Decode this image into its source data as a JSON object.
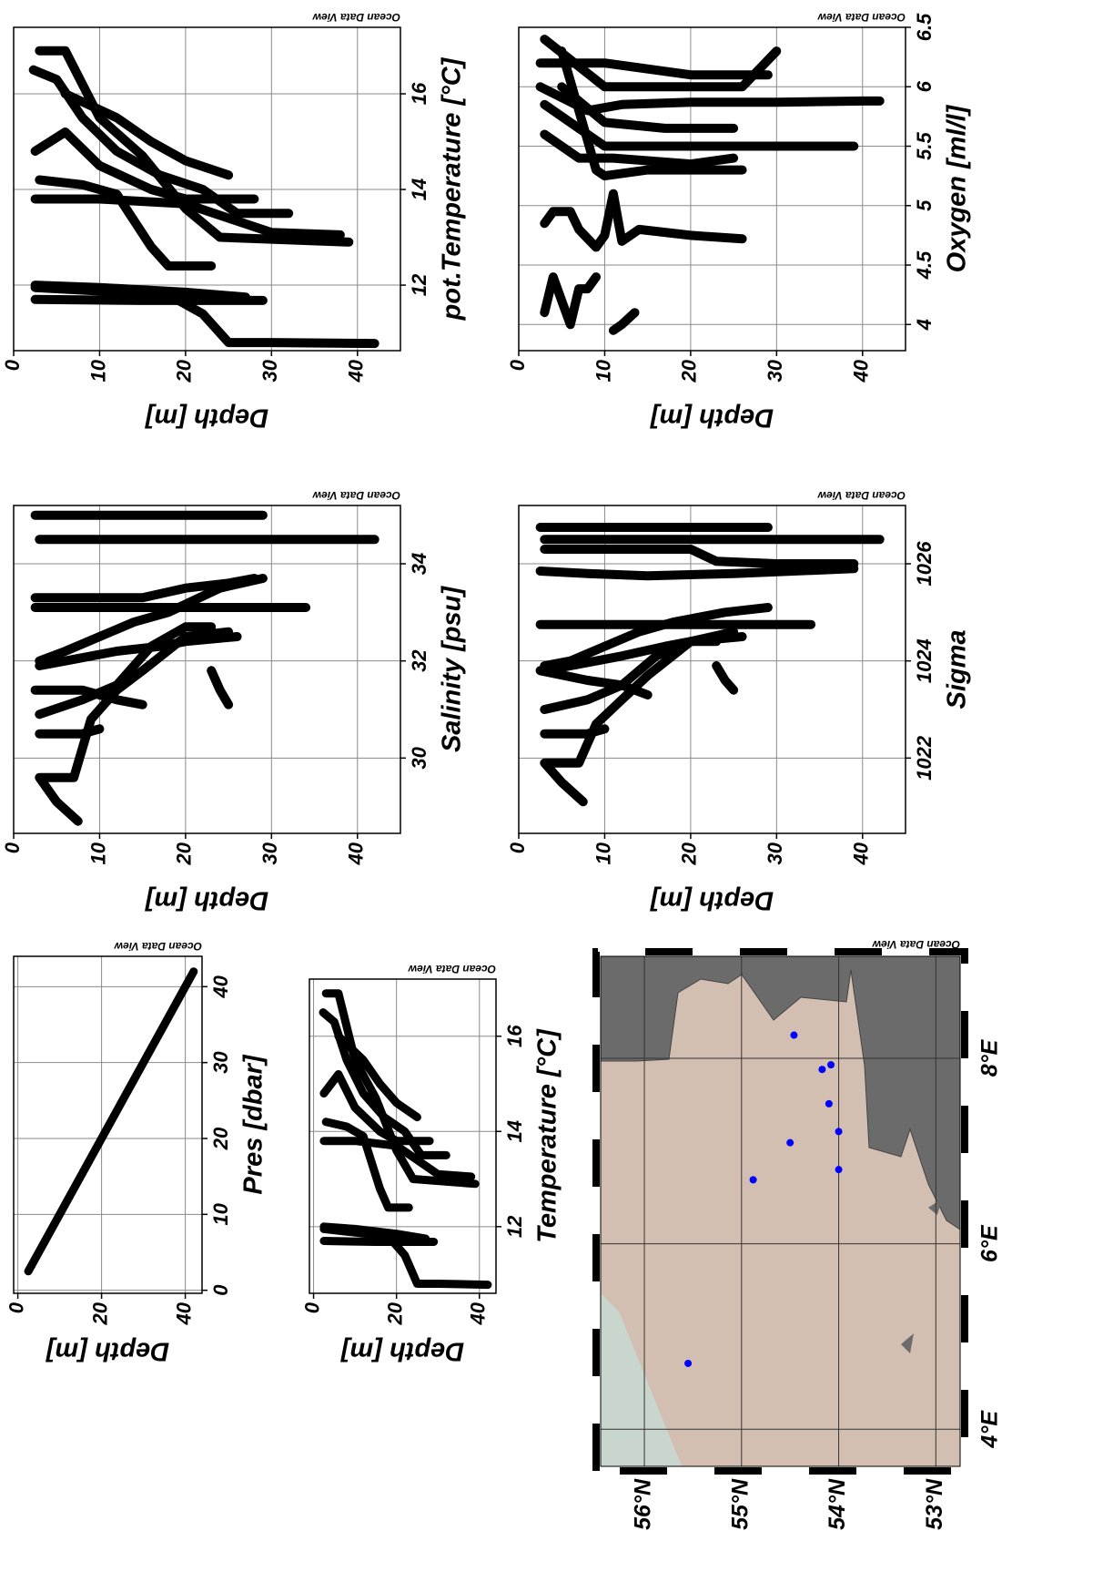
{
  "chart_data": [
    {
      "type": "scatter",
      "x_label": "pot.Temperature [°C]",
      "y_label": "Depth [m]",
      "watermark": "Ocean Data View",
      "xlim": [
        10.63,
        17.39
      ],
      "xticks": [
        12,
        14,
        16
      ],
      "ylim": [
        0,
        45
      ],
      "yticks": [
        0,
        10,
        20,
        30,
        40
      ],
      "y_inverted": true,
      "grid": true,
      "color": "#000000",
      "series": [
        {
          "x": [
            12.0,
            11.95,
            11.85,
            11.75
          ],
          "y": [
            2.5,
            10,
            20,
            27
          ]
        },
        {
          "x": [
            11.7,
            11.68,
            11.68
          ],
          "y": [
            2.5,
            15,
            29
          ]
        },
        {
          "x": [
            11.95,
            11.8,
            11.4,
            11.0,
            10.8,
            10.8,
            10.78
          ],
          "y": [
            2.5,
            18,
            22,
            24,
            25,
            30,
            42
          ]
        },
        {
          "x": [
            16.5,
            16.3,
            15.5,
            14.8,
            14.3,
            14.0,
            13.5,
            13.5
          ],
          "y": [
            2.3,
            5,
            8,
            12,
            17,
            22,
            26,
            32
          ]
        },
        {
          "x": [
            16.9,
            16.9,
            15.5,
            14.7,
            13.6,
            13.0,
            12.9
          ],
          "y": [
            3,
            6,
            10,
            15,
            20,
            24,
            39
          ]
        },
        {
          "x": [
            14.8,
            15.2,
            14.5,
            14.0,
            13.8,
            13.8
          ],
          "y": [
            2.5,
            6,
            10,
            16,
            20,
            28
          ]
        },
        {
          "x": [
            14.2,
            14.1,
            13.9,
            12.8,
            12.4,
            12.4
          ],
          "y": [
            3,
            8,
            12,
            16,
            18,
            23
          ]
        },
        {
          "x": [
            13.8,
            13.8,
            13.7,
            13.1,
            13.05
          ],
          "y": [
            2.5,
            10,
            20,
            30,
            38
          ]
        },
        {
          "x": [
            16.0,
            15.5,
            15.0,
            14.6,
            14.3
          ],
          "y": [
            6,
            12,
            16,
            20,
            25
          ]
        }
      ]
    },
    {
      "type": "scatter",
      "x_label": "Oxygen [ml/l]",
      "y_label": "Depth [m]",
      "watermark": "Ocean Data View",
      "xlim": [
        3.78,
        6.5
      ],
      "xticks": [
        4,
        4.5,
        5,
        5.5,
        6,
        6.5
      ],
      "ylim": [
        0,
        45
      ],
      "yticks": [
        0,
        10,
        20,
        30,
        40
      ],
      "y_inverted": true,
      "grid": true,
      "color": "#000000",
      "series": [
        {
          "x": [
            4.1,
            4.4,
            4.2,
            4.0,
            4.3,
            4.3,
            4.4
          ],
          "y": [
            3,
            4,
            5,
            6,
            7,
            8,
            9
          ]
        },
        {
          "x": [
            3.95,
            4.0,
            4.1
          ],
          "y": [
            11,
            12,
            13.5
          ]
        },
        {
          "x": [
            4.85,
            4.95,
            4.95,
            4.8,
            4.65,
            4.75,
            5.1,
            4.7,
            4.8,
            4.75,
            4.72
          ],
          "y": [
            3,
            4,
            6,
            7,
            9,
            10,
            11,
            12,
            14,
            20,
            26
          ]
        },
        {
          "x": [
            6.0,
            5.8,
            5.85,
            5.87,
            5.87,
            5.88,
            5.88
          ],
          "y": [
            2.5,
            8,
            12,
            20,
            30,
            40,
            42
          ]
        },
        {
          "x": [
            5.85,
            5.5,
            5.5,
            5.5,
            5.5
          ],
          "y": [
            3,
            10,
            20,
            30,
            39
          ]
        },
        {
          "x": [
            6.2,
            6.2,
            6.1,
            6.1
          ],
          "y": [
            2.5,
            10,
            20,
            29
          ]
        },
        {
          "x": [
            5.6,
            5.4,
            5.4,
            5.35,
            5.4
          ],
          "y": [
            3,
            7,
            11,
            20,
            25
          ]
        },
        {
          "x": [
            6.3,
            5.3,
            5.25,
            5.3,
            5.3
          ],
          "y": [
            5,
            9,
            10,
            15,
            26
          ]
        },
        {
          "x": [
            6.4,
            6.0,
            6.0,
            6.0,
            6.3
          ],
          "y": [
            3,
            10,
            20,
            26,
            30
          ]
        },
        {
          "x": [
            6.0,
            5.7,
            5.65,
            5.65
          ],
          "y": [
            5,
            10,
            17,
            25
          ]
        }
      ]
    },
    {
      "type": "scatter",
      "x_label": "Salinity [psu]",
      "y_label": "Depth [m]",
      "watermark": "Ocean Data View",
      "xlim": [
        28.45,
        35.2
      ],
      "xticks": [
        30,
        32,
        34
      ],
      "ylim": [
        0,
        45
      ],
      "yticks": [
        0,
        10,
        20,
        30,
        40
      ],
      "y_inverted": true,
      "grid": true,
      "color": "#000000",
      "series": [
        {
          "x": [
            35.0,
            35.0
          ],
          "y": [
            2.5,
            29
          ]
        },
        {
          "x": [
            34.5,
            34.5
          ],
          "y": [
            3,
            42
          ]
        },
        {
          "x": [
            28.7,
            29.1,
            29.6,
            29.6,
            29.6,
            30.8,
            31.4,
            31.8,
            32.5,
            32.6
          ],
          "y": [
            7.5,
            5,
            3,
            3,
            7,
            9,
            12,
            15,
            20,
            25
          ]
        },
        {
          "x": [
            33.3,
            33.3,
            33.3,
            33.5,
            33.6,
            33.7
          ],
          "y": [
            2.5,
            10,
            15,
            20,
            25,
            28
          ]
        },
        {
          "x": [
            32.0,
            32.2,
            32.5,
            32.8,
            33.0,
            33.5,
            33.7
          ],
          "y": [
            3,
            6,
            10,
            14,
            18,
            24,
            29
          ]
        },
        {
          "x": [
            33.1,
            33.1,
            33.1,
            33.1
          ],
          "y": [
            2.5,
            10,
            20,
            34
          ]
        },
        {
          "x": [
            31.9,
            32.0,
            32.2,
            32.3,
            32.4,
            32.5
          ],
          "y": [
            3,
            6,
            12,
            17,
            20,
            26
          ]
        },
        {
          "x": [
            30.9,
            31.2,
            31.5,
            32.3,
            32.7,
            32.7
          ],
          "y": [
            3,
            8,
            12,
            16,
            20,
            23
          ]
        },
        {
          "x": [
            31.4,
            31.4,
            31.2,
            31.1
          ],
          "y": [
            2.5,
            8,
            12,
            15
          ]
        },
        {
          "x": [
            30.5,
            30.5,
            30.6
          ],
          "y": [
            3,
            8,
            10
          ]
        },
        {
          "x": [
            31.8,
            31.4,
            31.1
          ],
          "y": [
            23,
            24,
            25
          ]
        }
      ]
    },
    {
      "type": "scatter",
      "x_label": "Sigma",
      "y_label": "Depth [m]",
      "watermark": "Ocean Data View",
      "xlim": [
        1020.45,
        1027.2
      ],
      "xticks": [
        1022,
        1024,
        1026
      ],
      "ylim": [
        0,
        45
      ],
      "yticks": [
        0,
        10,
        20,
        30,
        40
      ],
      "y_inverted": true,
      "grid": true,
      "color": "#000000",
      "series": [
        {
          "x": [
            1026.75,
            1026.75
          ],
          "y": [
            2.5,
            29
          ]
        },
        {
          "x": [
            1026.5,
            1026.5
          ],
          "y": [
            3,
            42
          ]
        },
        {
          "x": [
            1026.3,
            1026.3,
            1026.05,
            1026.0,
            1026.0
          ],
          "y": [
            3,
            20,
            23,
            30,
            39
          ]
        },
        {
          "x": [
            1025.85,
            1025.8,
            1025.75,
            1025.8,
            1025.9
          ],
          "y": [
            2.5,
            8,
            15,
            25,
            39
          ]
        },
        {
          "x": [
            1021.1,
            1021.5,
            1021.9,
            1021.9,
            1021.9,
            1022.7,
            1023.2,
            1023.7,
            1024.4,
            1024.6
          ],
          "y": [
            7.5,
            5,
            3,
            3,
            7,
            9,
            12,
            15,
            20,
            25
          ]
        },
        {
          "x": [
            1024.75,
            1024.75,
            1024.75,
            1024.75
          ],
          "y": [
            2.5,
            10,
            20,
            34
          ]
        },
        {
          "x": [
            1023.9,
            1024.0,
            1024.3,
            1024.6,
            1024.8,
            1025.0,
            1025.1
          ],
          "y": [
            3,
            6,
            10,
            14,
            18,
            24,
            29
          ]
        },
        {
          "x": [
            1023.8,
            1023.9,
            1024.1,
            1024.3,
            1024.4,
            1024.5
          ],
          "y": [
            3,
            6,
            12,
            17,
            20,
            26
          ]
        },
        {
          "x": [
            1023.0,
            1023.2,
            1023.5,
            1024.1,
            1024.4,
            1024.4
          ],
          "y": [
            3,
            8,
            12,
            16,
            20,
            23
          ]
        },
        {
          "x": [
            1023.8,
            1023.6,
            1023.5,
            1023.3
          ],
          "y": [
            2.5,
            8,
            12,
            15
          ]
        },
        {
          "x": [
            1022.5,
            1022.5,
            1022.6
          ],
          "y": [
            3,
            8,
            10
          ]
        },
        {
          "x": [
            1023.9,
            1023.6,
            1023.4
          ],
          "y": [
            23,
            24,
            25
          ]
        }
      ]
    },
    {
      "type": "scatter",
      "x_label": "Pres [dbar]",
      "y_label": "Depth [m]",
      "watermark": "Ocean Data View",
      "xlim": [
        -0.4,
        44
      ],
      "xticks": [
        0,
        10,
        20,
        30,
        40
      ],
      "ylim": [
        -1,
        44
      ],
      "yticks": [
        0,
        20,
        40
      ],
      "y_inverted": true,
      "grid": true,
      "color": "#000000",
      "series": [
        {
          "x": [
            2.5,
            42
          ],
          "y": [
            2.5,
            42
          ]
        }
      ]
    },
    {
      "type": "scatter",
      "x_label": "Temperature [°C]",
      "y_label": "Depth [m]",
      "watermark": "Ocean Data View",
      "xlim": [
        10.6,
        17.2
      ],
      "xticks": [
        12,
        14,
        16
      ],
      "ylim": [
        -1,
        44
      ],
      "yticks": [
        0,
        20,
        40
      ],
      "y_inverted": true,
      "grid": true,
      "color": "#000000",
      "series": [
        {
          "x": [
            12.0,
            11.95,
            11.85,
            11.75
          ],
          "y": [
            2.5,
            10,
            20,
            27
          ]
        },
        {
          "x": [
            11.7,
            11.68,
            11.68
          ],
          "y": [
            2.5,
            15,
            29
          ]
        },
        {
          "x": [
            11.95,
            11.8,
            11.4,
            11.0,
            10.8,
            10.8,
            10.78
          ],
          "y": [
            2.5,
            18,
            22,
            24,
            25,
            30,
            42
          ]
        },
        {
          "x": [
            16.5,
            16.3,
            15.5,
            14.8,
            14.3,
            14.0,
            13.5,
            13.5
          ],
          "y": [
            2.3,
            5,
            8,
            12,
            17,
            22,
            26,
            32
          ]
        },
        {
          "x": [
            16.9,
            16.9,
            15.5,
            14.7,
            13.6,
            13.0,
            12.9
          ],
          "y": [
            3,
            6,
            10,
            15,
            20,
            24,
            39
          ]
        },
        {
          "x": [
            14.8,
            15.2,
            14.5,
            14.0,
            13.8,
            13.8
          ],
          "y": [
            2.5,
            6,
            10,
            16,
            20,
            28
          ]
        },
        {
          "x": [
            14.2,
            14.1,
            13.9,
            12.8,
            12.4,
            12.4
          ],
          "y": [
            3,
            8,
            12,
            16,
            18,
            23
          ]
        },
        {
          "x": [
            13.8,
            13.8,
            13.7,
            13.1,
            13.05
          ],
          "y": [
            2.5,
            10,
            20,
            30,
            38
          ]
        },
        {
          "x": [
            16.0,
            15.5,
            15.0,
            14.6,
            14.3
          ],
          "y": [
            6,
            12,
            16,
            20,
            25
          ]
        }
      ]
    },
    {
      "type": "map",
      "watermark": "Ocean Data View",
      "xlim": [
        3.6,
        9.1
      ],
      "xticks": [
        {
          "value": 4,
          "label": "4°E"
        },
        {
          "value": 6,
          "label": "6°E"
        },
        {
          "value": 8,
          "label": "8°E"
        }
      ],
      "ylim": [
        52.75,
        56.45
      ],
      "yticks": [
        {
          "value": 53,
          "label": "53°N"
        },
        {
          "value": 54,
          "label": "54°N"
        },
        {
          "value": 55,
          "label": "55°N"
        },
        {
          "value": 56,
          "label": "56°N"
        }
      ],
      "grid": true,
      "color": "#0000ff",
      "stations": {
        "lon": [
          4.71,
          6.69,
          7.09,
          8.25,
          7.88,
          7.93,
          7.51,
          7.21,
          6.8
        ],
        "lat": [
          55.55,
          54.88,
          54.5,
          54.46,
          54.17,
          54.08,
          54.1,
          54.0,
          54.0
        ]
      }
    }
  ]
}
